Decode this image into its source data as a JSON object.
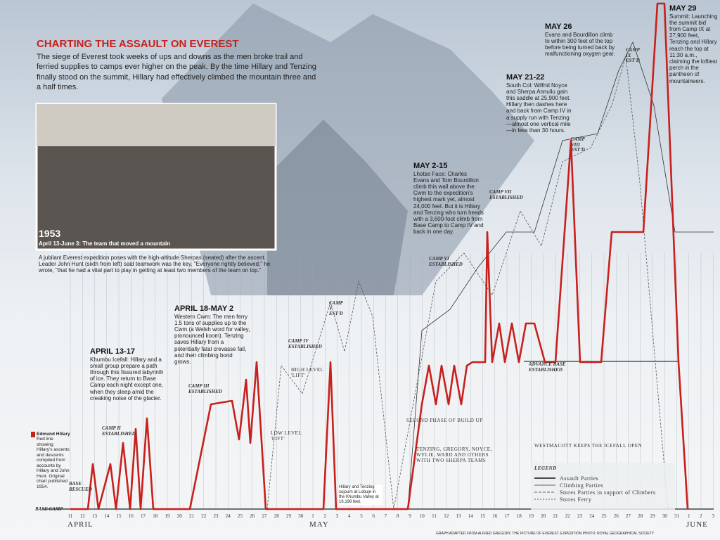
{
  "header": {
    "title": "CHARTING THE ASSAULT ON EVEREST",
    "intro": "The siege of Everest took weeks of ups and downs as the men broke trail and ferried supplies to camps ever higher on the peak. By the time Hillary and Tenzing finally stood on the summit, Hillary had effectively climbed the mountain three and a half times."
  },
  "photo": {
    "year": "1953",
    "subtitle": "April 13-June 3: The team that moved a mountain",
    "caption": "A jubilant Everest expedition poses with the high-altitude Sherpas (seated) after the ascent. Leader John Hunt (sixth from left) said teamwork was the key. \"Everyone rightly believed,\" he wrote, \"that he had a vital part to play in getting at least two members of the team on top.\""
  },
  "annotations": [
    {
      "heading": "APRIL 13-17",
      "text": "Khumbu Icefall: Hillary and a small group prepare a path through this fissured labyrinth of ice. They return to Base Camp each night except one, when they sleep amid the creaking noise of the glacier."
    },
    {
      "heading": "APRIL 18-MAY 2",
      "text": "Western Cwm: The men ferry 1.5 tons of supplies up to the Cwm (a Welsh word for valley, pronounced koom). Tenzing saves Hillary from a potentially fatal crevasse fall, and their climbing bond grows."
    },
    {
      "heading": "MAY 2-15",
      "text": "Lhotse Face: Charles Evans and Tom Bourdillon climb this wall above the Cwm to the expedition's highest mark yet, almost 24,000 feet. But it is Hillary and Tenzing who turn heads with a 3,600-foot climb from Base Camp to Camp IV and back in one day."
    },
    {
      "heading": "MAY 21-22",
      "text": "South Col: Wilfrid Noyce and Sherpa Annullu gain this saddle at 25,900 feet. Hillary then dashes here and back from Camp IV in a supply run with Tenzing—almost one vertical mile—in less than 30 hours."
    },
    {
      "heading": "MAY 26",
      "text": "Evans and Bourdillon climb to within 300 feet of the top before being turned back by malfunctioning oxygen gear."
    },
    {
      "heading": "MAY 29",
      "text": "Summit: Launching the summit bid from Camp IX at 27,900 feet, Tenzing and Hillary reach the top at 11:30 a.m., claiming the loftiest perch in the pantheon of mountaineers."
    }
  ],
  "hillary_note": {
    "title": "Edmund Hillary",
    "text": "Red line showing Hillary's ascents and descents compiled from accounts by Hillary and John Hunt. Original chart published 1954."
  },
  "camps": [
    "BASE CAMP",
    "BASE RESCUED",
    "CAMP II ESTABLISHED",
    "CAMP III ESTABLISHED",
    "CAMP IV ESTABLISHED",
    "CAMP V EST'D",
    "CAMP VI ESTABLISHED",
    "CAMP VII ESTABLISHED",
    "CAMP VIII EST'D",
    "CAMP IX EST'D",
    "ADVANCE BASE ESTABLISHED"
  ],
  "notes": [
    "HIGH LEVEL 'LIFT'",
    "LOW LEVEL 'LIFT'",
    "SECOND PHASE OF BUILD UP",
    "TENZING, GREGORY, NOYCE, WYLIE, WARD AND OTHERS WITH TWO SHERPA TEAMS",
    "WESTMACOTT KEEPS THE ICEFALL OPEN",
    "Hillary and Tenzing sojourn at Lobuje in the Khumbu Valley at 16,198 feet."
  ],
  "legend": {
    "title": "LEGEND",
    "items": [
      "Assault Parties",
      "Climbing Parties",
      "Stores Parties in support of Climbers",
      "Stores Ferry"
    ]
  },
  "axis": {
    "months": [
      "APRIL",
      "MAY",
      "JUNE"
    ],
    "days": [
      "11",
      "12",
      "13",
      "14",
      "15",
      "16",
      "17",
      "18",
      "19",
      "20",
      "21",
      "22",
      "23",
      "24",
      "25",
      "26",
      "27",
      "28",
      "29",
      "30",
      "1",
      "2",
      "3",
      "4",
      "5",
      "6",
      "7",
      "8",
      "9",
      "10",
      "11",
      "12",
      "13",
      "14",
      "15",
      "16",
      "17",
      "18",
      "19",
      "20",
      "21",
      "22",
      "23",
      "24",
      "25",
      "26",
      "27",
      "28",
      "29",
      "30",
      "31",
      "1",
      "2",
      "3"
    ]
  },
  "credit": "GRAPH ADAPTED FROM ALFRED GREGORY, THE PICTURE OF EVEREST. EXPEDITION PHOTO: ROYAL GEOGRAPHICAL SOCIETY"
}
